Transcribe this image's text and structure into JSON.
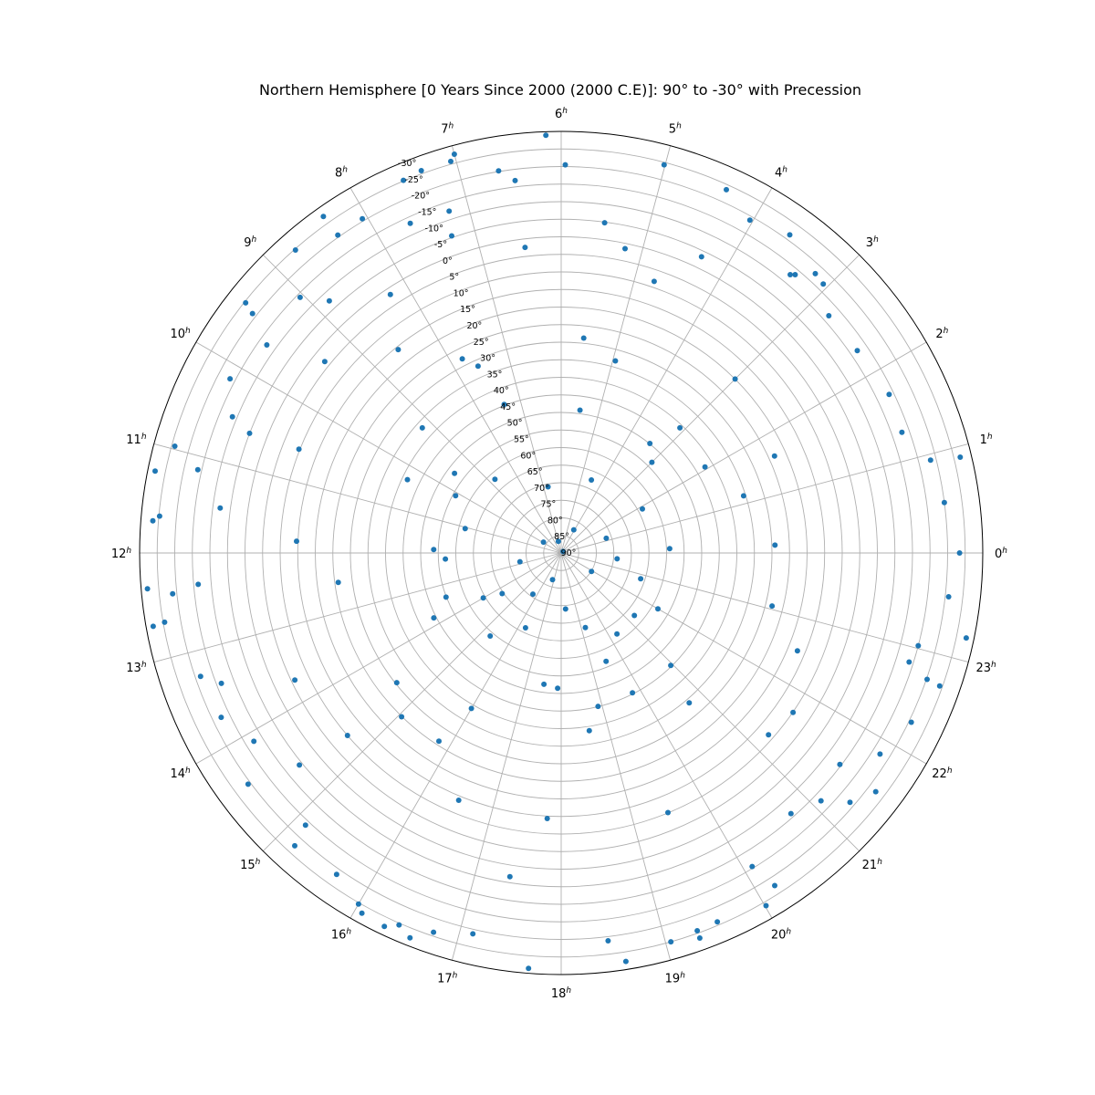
{
  "chart_data": {
    "type": "scatter",
    "projection": "polar",
    "title": "Northern Hemisphere [0 Years Since 2000 (2000 C.E)]: 90° to -30° with Precession",
    "angular_axis": {
      "unit": "hours",
      "ticks": [
        "0",
        "1",
        "2",
        "3",
        "4",
        "5",
        "6",
        "7",
        "8",
        "9",
        "10",
        "11",
        "12",
        "13",
        "14",
        "15",
        "16",
        "17",
        "18",
        "19",
        "20",
        "21",
        "22",
        "23"
      ],
      "tick_suffix": "h",
      "direction": "counterclockwise",
      "zero_location": "east"
    },
    "radial_axis": {
      "unit": "degrees declination",
      "center_value": 90,
      "edge_value": -30,
      "tick_labels": [
        "90°",
        "85°",
        "80°",
        "75°",
        "70°",
        "65°",
        "60°",
        "55°",
        "50°",
        "45°",
        "40°",
        "35°",
        "30°",
        "25°",
        "20°",
        "15°",
        "10°",
        "5°",
        "0°",
        "-5°",
        "-10°",
        "-15°",
        "-20°",
        "-25°",
        "-30°"
      ],
      "label_angle_hours": 7.5
    },
    "grid": true,
    "marker_color": "#1f77b4",
    "series": [
      {
        "points": [
          [
            6.14,
            -29.0
          ],
          [
            7.0,
            -27.5
          ],
          [
            7.05,
            -25.8
          ],
          [
            7.34,
            -25.9
          ],
          [
            7.53,
            -25.2
          ],
          [
            5.01,
            -24.3
          ],
          [
            5.96,
            -20.5
          ],
          [
            6.47,
            -16.8
          ],
          [
            6.62,
            -20.2
          ],
          [
            4.37,
            -23.6
          ],
          [
            4.03,
            -18.9
          ],
          [
            3.62,
            -21.5
          ],
          [
            3.37,
            -12.6
          ],
          [
            3.33,
            -13.5
          ],
          [
            3.05,
            -16.9
          ],
          [
            3.18,
            -17.5
          ],
          [
            2.77,
            -11.8
          ],
          [
            2.29,
            -12.1
          ],
          [
            8.05,
            -20.7
          ],
          [
            8.34,
            -20.6
          ],
          [
            8.35,
            -27.3
          ],
          [
            8.75,
            -24.7
          ],
          [
            9.44,
            -24.6
          ],
          [
            9.48,
            -21.2
          ],
          [
            9.04,
            -14.0
          ],
          [
            9.65,
            -12.6
          ],
          [
            8.84,
            -7.5
          ],
          [
            7.64,
            -13.2
          ],
          [
            7.21,
            -12.4
          ],
          [
            7.27,
            -5.5
          ],
          [
            10.97,
            -24.1
          ],
          [
            11.24,
            -27.9
          ],
          [
            11.7,
            -26.6
          ],
          [
            11.14,
            -16.1
          ],
          [
            11.65,
            -24.8
          ],
          [
            12.33,
            -28.2
          ],
          [
            12.4,
            -21.2
          ],
          [
            12.66,
            -24.6
          ],
          [
            12.68,
            -28.0
          ],
          [
            13.26,
            -18.5
          ],
          [
            13.72,
            -17.5
          ],
          [
            14.43,
            -20.8
          ],
          [
            15.18,
            -22.7
          ],
          [
            15.12,
            -16.3
          ],
          [
            15.67,
            -21.6
          ],
          [
            16.07,
            -27.2
          ],
          [
            16.31,
            -27.6
          ],
          [
            16.0,
            -25.4
          ],
          [
            16.43,
            -25.5
          ],
          [
            16.57,
            -27.7
          ],
          [
            16.76,
            -23.9
          ],
          [
            17.13,
            -21.3
          ],
          [
            17.7,
            -28.6
          ],
          [
            18.6,
            -27.7
          ],
          [
            19.05,
            -25.0
          ],
          [
            19.32,
            -26.5
          ],
          [
            19.32,
            -24.3
          ],
          [
            19.53,
            -24.0
          ],
          [
            20.01,
            -26.1
          ],
          [
            20.18,
            -22.5
          ],
          [
            21.28,
            -18.6
          ],
          [
            21.85,
            -17.3
          ],
          [
            22.71,
            -24.2
          ],
          [
            22.73,
            -20.2
          ],
          [
            23.21,
            -27.8
          ],
          [
            0.0,
            -23.4
          ],
          [
            0.5,
            -20.0
          ],
          [
            0.9,
            -26.8
          ],
          [
            0.94,
            -18.4
          ],
          [
            1.3,
            -12.9
          ],
          [
            1.72,
            -13.7
          ],
          [
            23.57,
            -21.0
          ],
          [
            22.28,
            -20.7
          ],
          [
            21.52,
            -22.4
          ],
          [
            22.84,
            -13.8
          ],
          [
            10.6,
            -5.0
          ],
          [
            10.15,
            -16.5
          ],
          [
            10.5,
            -11.3
          ],
          [
            11.5,
            -7.9
          ],
          [
            12.33,
            -13.7
          ],
          [
            13.4,
            -13.6
          ],
          [
            14.1,
            -12.6
          ],
          [
            14.6,
            -5.9
          ],
          [
            17.4,
            -3.3
          ],
          [
            18.46,
            -21.2
          ],
          [
            20.09,
            -14.5
          ],
          [
            20.76,
            -8.9
          ],
          [
            21.09,
            -12.2
          ],
          [
            21.52,
            -9.6
          ],
          [
            23.03,
            -15.0
          ],
          [
            4.31,
            -3.3
          ],
          [
            4.74,
            8.3
          ],
          [
            5.21,
            1.5
          ],
          [
            5.5,
            -4.8
          ],
          [
            8.58,
            15.8
          ],
          [
            8.23,
            1.8
          ],
          [
            9.4,
            3.4
          ],
          [
            6.45,
            2.4
          ],
          [
            10.56,
            9.7
          ],
          [
            13.7,
            6.0
          ],
          [
            14.7,
            10.0
          ],
          [
            16.5,
            13.8
          ],
          [
            17.8,
            14.3
          ],
          [
            19.49,
            10.1
          ],
          [
            21.25,
            11.5
          ],
          [
            22.5,
            17.2
          ],
          [
            1.63,
            23.3
          ],
          [
            3.0,
            20.0
          ],
          [
            5.6,
            28.5
          ],
          [
            7.8,
            28.0
          ],
          [
            11.83,
            14.6
          ],
          [
            12.5,
            26.0
          ],
          [
            15.05,
            24.9
          ],
          [
            15.8,
            26.1
          ],
          [
            18.6,
            38.8
          ],
          [
            20.7,
            33.9
          ],
          [
            23.06,
            28.1
          ],
          [
            0.14,
            29.1
          ],
          [
            1.16,
            35.6
          ],
          [
            2.06,
            42.3
          ],
          [
            3.4,
            49.9
          ],
          [
            4.95,
            33.2
          ],
          [
            7.6,
            31.8
          ],
          [
            9.2,
            36.8
          ],
          [
            10.3,
            41.5
          ],
          [
            11.9,
            53.7
          ],
          [
            13.8,
            49.3
          ],
          [
            14.55,
            30.4
          ],
          [
            16.0,
            38.9
          ],
          [
            17.5,
            52.3
          ],
          [
            18.9,
            45.1
          ],
          [
            19.8,
            45.3
          ],
          [
            21.7,
            9.9
          ],
          [
            22.0,
            58.2
          ],
          [
            1.9,
            63.7
          ],
          [
            3.0,
            53.5
          ],
          [
            4.5,
            67.5
          ],
          [
            6.75,
            70.8
          ],
          [
            8.8,
            61.8
          ],
          [
            10.1,
            55.8
          ],
          [
            12.2,
            57.0
          ],
          [
            14.0,
            64.4
          ],
          [
            15.3,
            58.9
          ],
          [
            16.8,
            82.0
          ],
          [
            19.2,
            67.7
          ],
          [
            20.3,
            62.0
          ],
          [
            21.3,
            62.6
          ],
          [
            22.8,
            66.2
          ],
          [
            0.15,
            59.1
          ],
          [
            2.5,
            89.3
          ],
          [
            11.05,
            61.8
          ],
          [
            13.4,
            54.9
          ],
          [
            17.9,
            51.5
          ],
          [
            20.95,
            45.3
          ],
          [
            3.1,
            40.9
          ],
          [
            5.5,
            49.0
          ],
          [
            7.4,
            44.7
          ],
          [
            9.55,
            52.1
          ],
          [
            12.8,
            78.0
          ],
          [
            15.7,
            75.8
          ],
          [
            18.3,
            74.0
          ],
          [
            21.9,
            79.9
          ],
          [
            1.2,
            76.5
          ],
          [
            4.1,
            82.5
          ],
          [
            6.9,
            86.6
          ],
          [
            9.9,
            84.1
          ],
          [
            14.3,
            69.6
          ],
          [
            16.3,
            66.4
          ],
          [
            19.5,
            56.6
          ],
          [
            23.6,
            74.0
          ]
        ]
      }
    ]
  }
}
